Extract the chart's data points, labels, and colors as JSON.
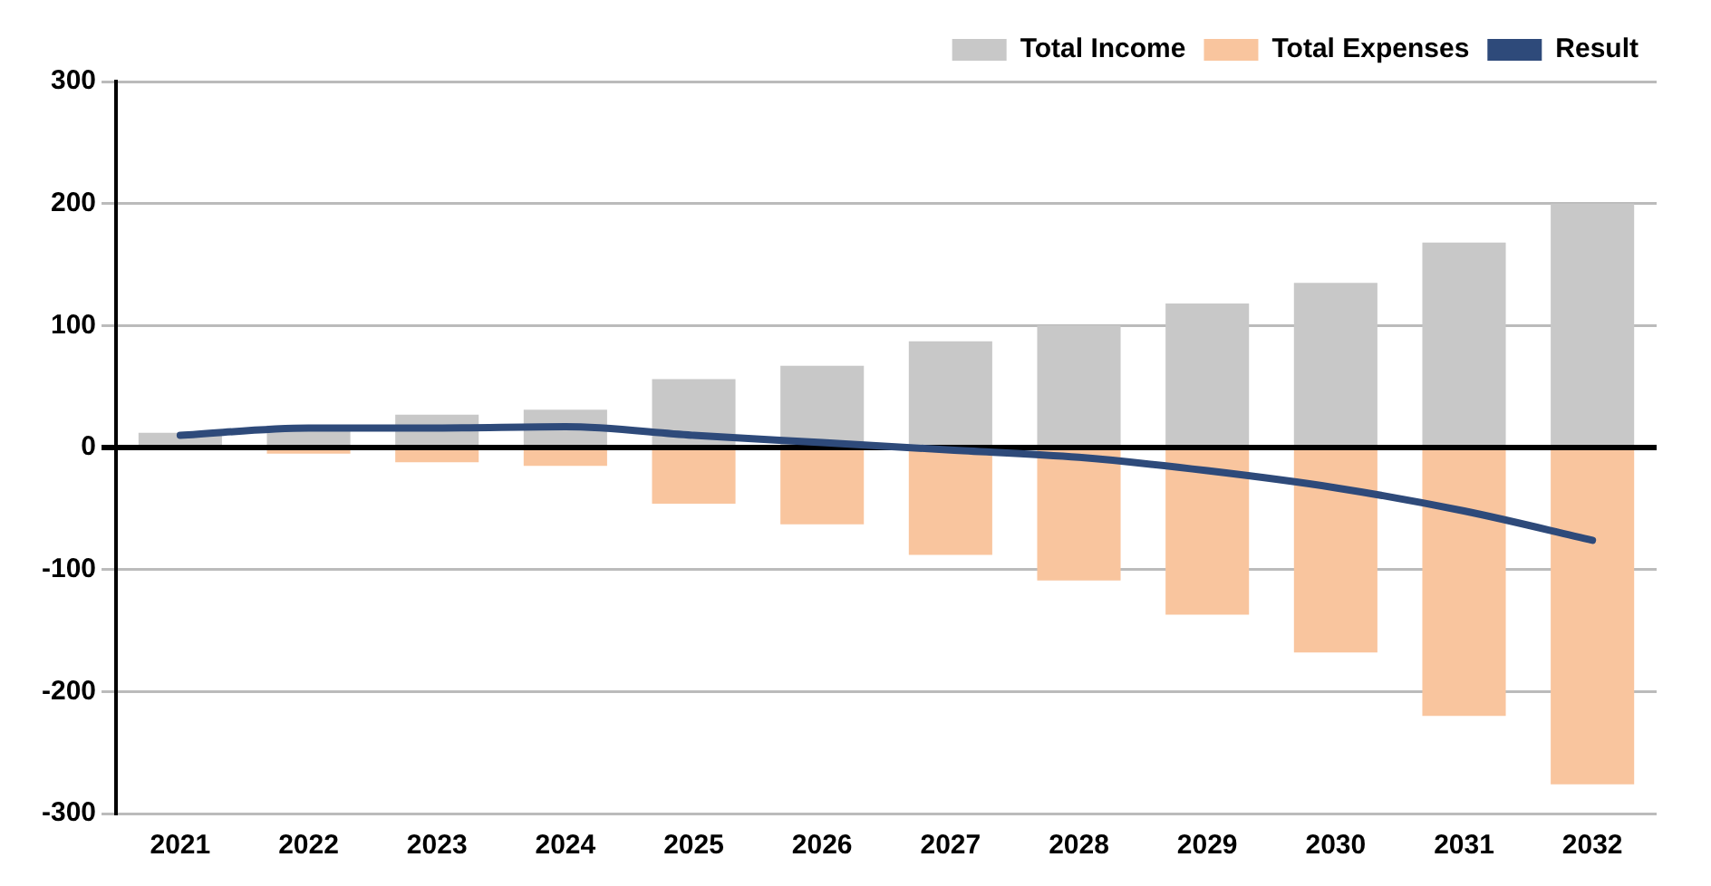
{
  "chart_data": {
    "type": "bar",
    "stacked": true,
    "categories": [
      "2021",
      "2022",
      "2023",
      "2024",
      "2025",
      "2026",
      "2027",
      "2028",
      "2029",
      "2030",
      "2031",
      "2032"
    ],
    "series": [
      {
        "name": "Total Income",
        "color": "#c8c8c8",
        "values": [
          12,
          18,
          27,
          31,
          56,
          67,
          87,
          100,
          118,
          135,
          168,
          200
        ]
      },
      {
        "name": "Total Expenses",
        "color": "#f9c59e",
        "values": [
          null,
          -5,
          -12,
          -15,
          -46,
          -63,
          -88,
          -109,
          -137,
          -168,
          -220,
          -276
        ]
      },
      {
        "name": "Result",
        "type": "line",
        "color": "#2e4a7a",
        "values": [
          10,
          16,
          16,
          17,
          10,
          4,
          -2,
          -8,
          -19,
          -33,
          -52,
          -76
        ]
      }
    ],
    "ylim": [
      -300,
      300
    ],
    "yticks": [
      -300,
      -200,
      -100,
      0,
      100,
      200,
      300
    ],
    "grid": "y",
    "legend": "top right",
    "marker": "none"
  }
}
